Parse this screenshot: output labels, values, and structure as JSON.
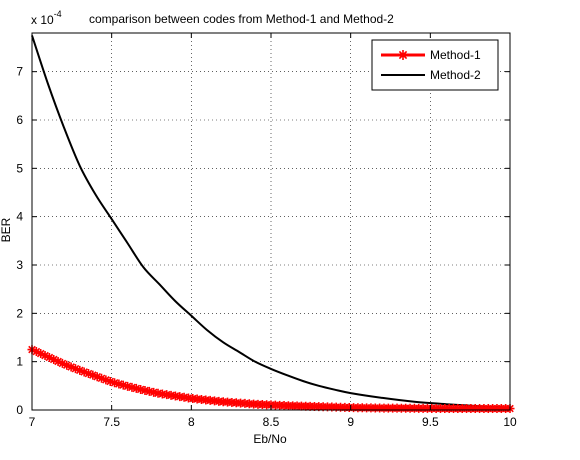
{
  "chart_data": {
    "type": "line",
    "title": "comparison between codes from Method-1 and Method-2",
    "xlabel": "Eb/No",
    "ylabel": "BER",
    "y_multiplier": "x 10",
    "y_exponent": "-4",
    "xlim": [
      7,
      10
    ],
    "ylim": [
      0,
      7.8
    ],
    "x_ticks": [
      "7",
      "7.5",
      "8",
      "8.5",
      "9",
      "9.5",
      "10"
    ],
    "y_ticks": [
      "0",
      "1",
      "2",
      "3",
      "4",
      "5",
      "6",
      "7"
    ],
    "grid": true,
    "legend_position": "top-right",
    "series": [
      {
        "name": "Method-1",
        "color": "#ff0000",
        "marker": "asterisk",
        "x": [
          7.0,
          7.1,
          7.2,
          7.3,
          7.4,
          7.5,
          7.6,
          7.7,
          7.8,
          7.9,
          8.0,
          8.2,
          8.4,
          8.6,
          8.8,
          9.0,
          9.2,
          9.4,
          9.6,
          9.8,
          10.0
        ],
        "y": [
          1.25,
          1.1,
          0.95,
          0.82,
          0.7,
          0.58,
          0.49,
          0.41,
          0.34,
          0.29,
          0.24,
          0.17,
          0.12,
          0.09,
          0.07,
          0.05,
          0.04,
          0.035,
          0.03,
          0.03,
          0.03
        ]
      },
      {
        "name": "Method-2",
        "color": "#000000",
        "marker": "none",
        "x": [
          7.0,
          7.1,
          7.2,
          7.3,
          7.4,
          7.5,
          7.6,
          7.7,
          7.8,
          7.9,
          8.0,
          8.1,
          8.2,
          8.3,
          8.4,
          8.5,
          8.6,
          8.7,
          8.8,
          8.9,
          9.0,
          9.2,
          9.4,
          9.6,
          9.8,
          10.0
        ],
        "y": [
          7.75,
          6.75,
          5.85,
          5.05,
          4.45,
          3.95,
          3.45,
          2.95,
          2.6,
          2.25,
          1.95,
          1.65,
          1.4,
          1.2,
          1.0,
          0.85,
          0.72,
          0.6,
          0.5,
          0.42,
          0.35,
          0.25,
          0.17,
          0.12,
          0.08,
          0.05
        ]
      }
    ]
  }
}
